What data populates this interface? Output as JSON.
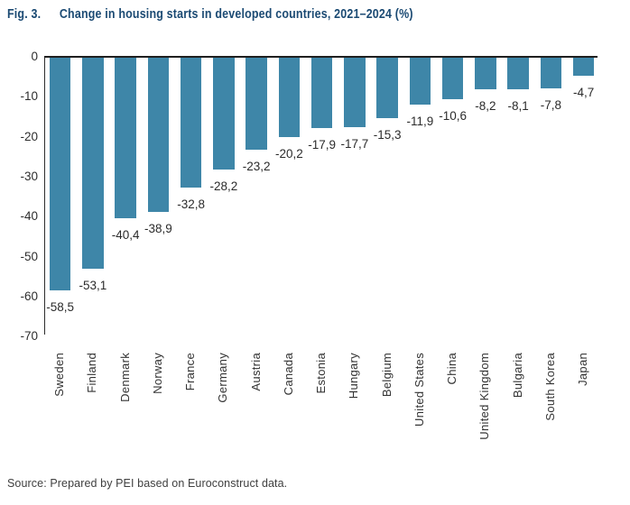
{
  "figure": {
    "label": "Fig. 3.",
    "title": "Change in housing starts in developed countries, 2021–2024 (%)"
  },
  "chart_data": {
    "type": "bar",
    "title": "Change in housing starts in developed countries, 2021–2024 (%)",
    "categories": [
      "Sweden",
      "Finland",
      "Denmark",
      "Norway",
      "France",
      "Germany",
      "Austria",
      "Canada",
      "Estonia",
      "Hungary",
      "Belgium",
      "United States",
      "China",
      "United Kingdom",
      "Bulgaria",
      "South Korea",
      "Japan"
    ],
    "values": [
      -58.5,
      -53.1,
      -40.4,
      -38.9,
      -32.8,
      -28.2,
      -23.2,
      -20.2,
      -17.9,
      -17.7,
      -15.3,
      -11.9,
      -10.6,
      -8.2,
      -8.1,
      -7.8,
      -4.7
    ],
    "value_labels": [
      "-58,5",
      "-53,1",
      "-40,4",
      "-38,9",
      "-32,8",
      "-28,2",
      "-23,2",
      "-20,2",
      "-17,9",
      "-17,7",
      "-15,3",
      "-11,9",
      "-10,6",
      "-8,2",
      "-8,1",
      "-7,8",
      "-4,7"
    ],
    "ylim": [
      -70,
      0
    ],
    "yticks": [
      0,
      -10,
      -20,
      -30,
      -40,
      -50,
      -60,
      -70
    ],
    "ytick_labels": [
      "0",
      "-10",
      "-20",
      "-30",
      "-40",
      "-50",
      "-60",
      "-70"
    ],
    "grid": false,
    "legend_position": "none",
    "bar_color": "#3e86a8",
    "xlabel": "",
    "ylabel": ""
  },
  "source_note": "Source: Prepared by PEI based on Euroconstruct data.",
  "colors": {
    "title": "#1b4a73",
    "bar": "#3e86a8",
    "zero_line": "#1f1f1f",
    "axis_line": "#2d2d2d",
    "tick_text": "#2e2e2e",
    "value_text": "#2b2b2b",
    "category_text": "#333333",
    "source_text": "#3f3f3f",
    "background": "#ffffff"
  }
}
